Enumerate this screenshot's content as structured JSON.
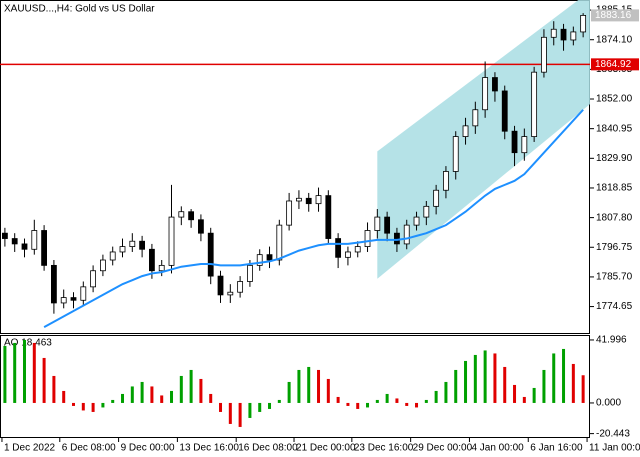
{
  "chart_data": [
    {
      "type": "candlestick",
      "title": "XAUUSD...,H4:  Gold vs US Dollar",
      "xlim": [
        -0.5,
        59.7
      ],
      "xticks": [
        {
          "value": -0.3,
          "label": "1 Dec 2022"
        },
        {
          "value": 5.6,
          "label": "6 Dec 08:00"
        },
        {
          "value": 11.6,
          "label": "9 Dec 00:00"
        },
        {
          "value": 17.6,
          "label": "13 Dec 16:00"
        },
        {
          "value": 23.6,
          "label": "16 Dec 08:00"
        },
        {
          "value": 29.5,
          "label": "21 Dec 00:00"
        },
        {
          "value": 35.4,
          "label": "23 Dec 16:00"
        },
        {
          "value": 41.4,
          "label": "29 Dec 00:00"
        },
        {
          "value": 47.4,
          "label": "4 Jan 00:00"
        },
        {
          "value": 53.4,
          "label": "6 Jan 16:00"
        },
        {
          "value": 59.4,
          "label": "11 Jan 00:00"
        }
      ],
      "ylim": [
        1764.8,
        1888.9
      ],
      "yticks": [
        1885.15,
        {
          "value": 1874.1,
          "label": "1874.10"
        },
        1863.05,
        {
          "value": 1852,
          "label": "1852.00"
        },
        1840.95,
        {
          "value": 1829.9,
          "label": "1829.90"
        },
        1818.85,
        {
          "value": 1807.8,
          "label": "1807.80"
        },
        1796.75,
        {
          "value": 1785.7,
          "label": "1785.70"
        },
        1774.65
      ],
      "candle_color": "#000000",
      "open": [
        1802,
        1800,
        1798,
        1796,
        1803,
        1790,
        1776,
        1778,
        1777,
        1782,
        1788,
        1792,
        1795,
        1797,
        1799,
        1796,
        1788,
        1790,
        1808,
        1810,
        1807,
        1802,
        1786,
        1779,
        1780,
        1784,
        1790,
        1794,
        1792,
        1805,
        1814,
        1815,
        1813,
        1816,
        1800,
        1793,
        1795,
        1797,
        1803,
        1808,
        1802,
        1798,
        1805,
        1808,
        1812,
        1818,
        1825,
        1838,
        1842,
        1848,
        1860,
        1855,
        1840,
        1832,
        1838,
        1862,
        1875,
        1878,
        1874,
        1877
      ],
      "high": [
        1804,
        1802,
        1800,
        1807,
        1805,
        1792,
        1781,
        1780,
        1784,
        1790,
        1794,
        1797,
        1800,
        1802,
        1801,
        1798,
        1792,
        1820,
        1812,
        1811,
        1809,
        1804,
        1788,
        1783,
        1786,
        1792,
        1796,
        1797,
        1807,
        1817,
        1818,
        1817,
        1819,
        1818,
        1802,
        1797,
        1799,
        1806,
        1811,
        1810,
        1804,
        1807,
        1810,
        1814,
        1820,
        1827,
        1840,
        1845,
        1851,
        1866,
        1862,
        1857,
        1842,
        1841,
        1864,
        1878,
        1881,
        1880,
        1879,
        1884
      ],
      "low": [
        1797,
        1795,
        1793,
        1794,
        1788,
        1772,
        1774,
        1774,
        1775,
        1780,
        1786,
        1790,
        1793,
        1795,
        1793,
        1785,
        1786,
        1787,
        1805,
        1804,
        1799,
        1783,
        1776,
        1776,
        1778,
        1782,
        1788,
        1789,
        1790,
        1803,
        1811,
        1810,
        1810,
        1798,
        1789,
        1790,
        1793,
        1795,
        1800,
        1799,
        1795,
        1796,
        1803,
        1805,
        1809,
        1815,
        1822,
        1835,
        1839,
        1845,
        1851,
        1837,
        1827,
        1829,
        1836,
        1860,
        1872,
        1870,
        1872,
        1875
      ],
      "close": [
        1800,
        1798,
        1796,
        1803,
        1790,
        1776,
        1778,
        1777,
        1782,
        1788,
        1792,
        1795,
        1797,
        1799,
        1796,
        1788,
        1790,
        1808,
        1810,
        1807,
        1802,
        1786,
        1779,
        1780,
        1784,
        1790,
        1794,
        1792,
        1805,
        1814,
        1815,
        1813,
        1816,
        1800,
        1793,
        1795,
        1797,
        1803,
        1808,
        1802,
        1798,
        1805,
        1808,
        1812,
        1818,
        1825,
        1838,
        1842,
        1848,
        1860,
        1855,
        1840,
        1832,
        1838,
        1862,
        1875,
        1878,
        1874,
        1877,
        1883.16
      ],
      "ma": {
        "color": "#1e90ff",
        "values": [
          null,
          null,
          null,
          null,
          1767,
          1769,
          1771,
          1773,
          1775,
          1777,
          1779,
          1781,
          1783,
          1784.5,
          1786,
          1787,
          1787.5,
          1788.5,
          1789.5,
          1790,
          1790.5,
          1790.5,
          1790,
          1790,
          1790,
          1790.5,
          1791,
          1791.5,
          1792.5,
          1794,
          1795.5,
          1796.5,
          1797.5,
          1798,
          1798,
          1798,
          1798.5,
          1799,
          1799.5,
          1799.5,
          1799.5,
          1800,
          1801,
          1802,
          1803.5,
          1805,
          1807.5,
          1810,
          1813,
          1816,
          1818.5,
          1820,
          1821.5,
          1824,
          1828,
          1832,
          1836,
          1840,
          1844,
          1848
        ]
      },
      "channel": {
        "color": "#a8dde3",
        "x": [
          38,
          60
        ],
        "upper": [
          1832.5,
          1893
        ],
        "lower": [
          1785,
          1851
        ]
      },
      "hline": {
        "value": 1864.92,
        "color": "#e00000"
      },
      "last_color": "#c0c0c0"
    },
    {
      "type": "bar",
      "title": "AO 18.463",
      "ylim": [
        -22.7,
        45.3
      ],
      "yticks": [
        41.996,
        {
          "value": 0,
          "label": "0.000"
        },
        -20.443
      ],
      "up_color": "#00a000",
      "down_color": "#e00000",
      "values": [
        38,
        40,
        42,
        40,
        30,
        18,
        8,
        -2,
        -5,
        -6,
        -3,
        2,
        6,
        11,
        14,
        11,
        5,
        8,
        18,
        22,
        16,
        6,
        -6,
        -14,
        -16,
        -10,
        -6,
        -4,
        2,
        14,
        22,
        24,
        22,
        16,
        4,
        -2,
        -4,
        -3,
        2,
        6,
        3,
        -2,
        -3,
        2,
        8,
        14,
        22,
        28,
        32,
        35,
        33,
        24,
        12,
        4,
        10,
        22,
        33,
        36,
        26,
        18.463
      ]
    }
  ]
}
